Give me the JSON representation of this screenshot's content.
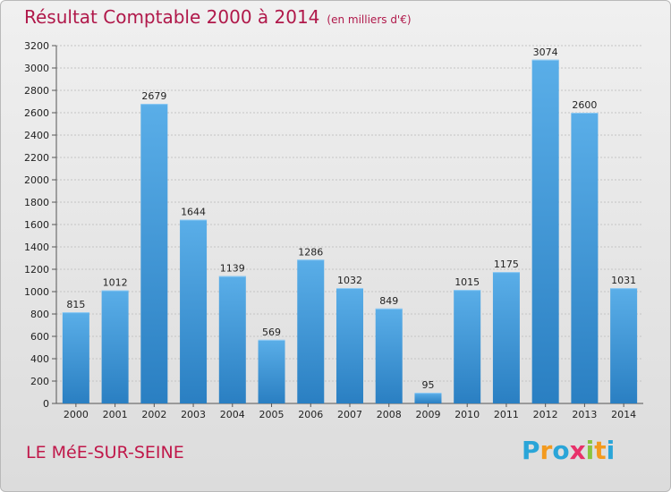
{
  "title": "Résultat Comptable 2000 à 2014",
  "subtitle": "(en milliers d'€)",
  "commune": "LE MéE-SUR-SEINE",
  "logo": {
    "letters": [
      "P",
      "r",
      "o",
      "x",
      "i",
      "t",
      "i"
    ],
    "colors": [
      "#2aa5d8",
      "#f39a1e",
      "#2aa5d8",
      "#e8316a",
      "#8ac43f",
      "#f39a1e",
      "#2aa5d8"
    ]
  },
  "colors": {
    "bar_top": "#5aaee8",
    "bar_bottom": "#2a7fc2",
    "title": "#b0184a"
  },
  "chart_data": {
    "type": "bar",
    "title": "Résultat Comptable 2000 à 2014",
    "xlabel": "",
    "ylabel": "",
    "ylim": [
      0,
      3200
    ],
    "yticks": [
      0,
      200,
      400,
      600,
      800,
      1000,
      1200,
      1400,
      1600,
      1800,
      2000,
      2200,
      2400,
      2600,
      2800,
      3000,
      3200
    ],
    "grid": true,
    "categories": [
      "2000",
      "2001",
      "2002",
      "2003",
      "2004",
      "2005",
      "2006",
      "2007",
      "2008",
      "2009",
      "2010",
      "2011",
      "2012",
      "2013",
      "2014"
    ],
    "values": [
      815,
      1012,
      2679,
      1644,
      1139,
      569,
      1286,
      1032,
      849,
      95,
      1015,
      1175,
      3074,
      2600,
      1031
    ]
  }
}
